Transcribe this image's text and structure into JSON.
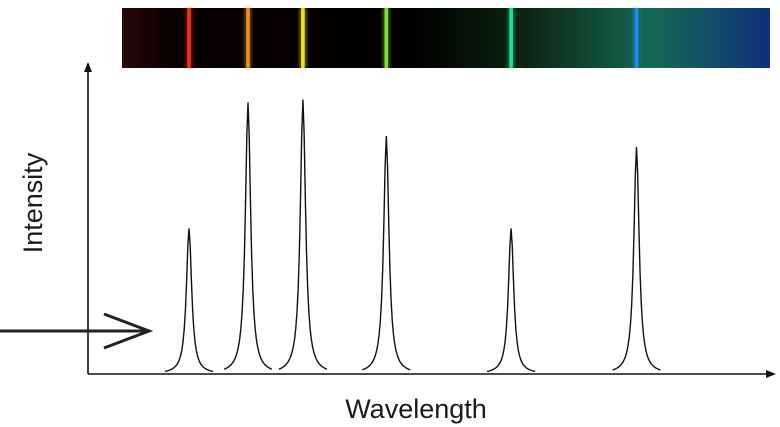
{
  "chart_data": {
    "type": "line",
    "title": "",
    "xlabel": "Wavelength",
    "ylabel": "Intensity",
    "x_range": [
      0,
      100
    ],
    "y_range": [
      0,
      100
    ],
    "grid": false,
    "legend": "none",
    "peaks": [
      {
        "x": 14.9,
        "height": 52,
        "color": "#e83a10"
      },
      {
        "x": 23.6,
        "height": 97,
        "color": "#f0901c"
      },
      {
        "x": 31.7,
        "height": 98,
        "color": "#f2e21a"
      },
      {
        "x": 44.0,
        "height": 85,
        "color": "#7ee02a"
      },
      {
        "x": 62.4,
        "height": 52,
        "color": "#1ee08c"
      },
      {
        "x": 80.9,
        "height": 81,
        "color": "#1a8ff0"
      }
    ]
  },
  "colors": {
    "curve": "#111111",
    "axis": "#111111",
    "arrow": "#222222"
  },
  "spectrum_strip": {
    "background_gradient": [
      "#2a0808",
      "#000000",
      "#000000",
      "#0c2410",
      "#146a55",
      "#10307a"
    ]
  },
  "annotation": {
    "icon": "right-arrow-icon"
  }
}
